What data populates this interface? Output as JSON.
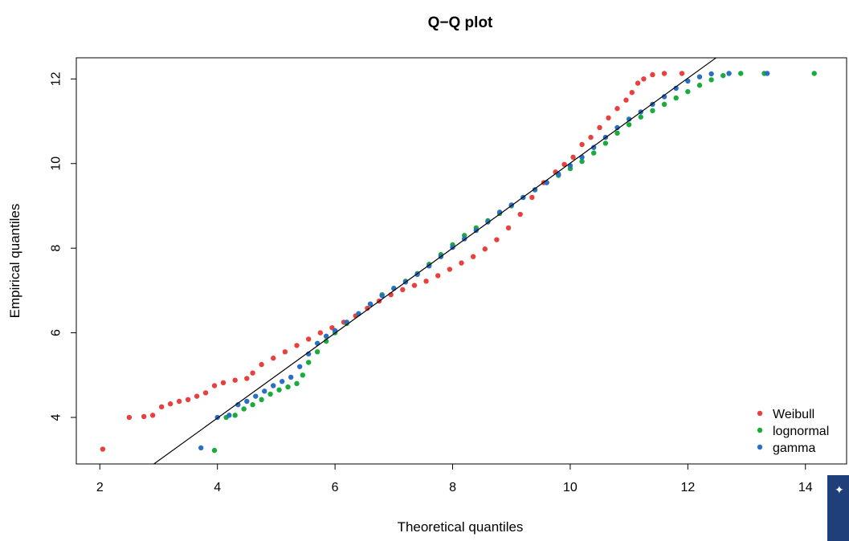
{
  "chart_data": {
    "type": "scatter",
    "title": "Q−Q plot",
    "xlabel": "Theoretical quantiles",
    "ylabel": "Empirical quantiles",
    "xlim": [
      1.6,
      14.7
    ],
    "ylim": [
      2.9,
      12.5
    ],
    "xticks": [
      2,
      4,
      6,
      8,
      10,
      12,
      14
    ],
    "yticks": [
      4,
      6,
      8,
      10,
      12
    ],
    "reference_line": {
      "x": [
        2.92,
        12.48
      ],
      "y": [
        2.9,
        12.5
      ]
    },
    "legend_position": "bottom-right",
    "series": [
      {
        "name": "Weibull",
        "color": "#e8403d",
        "points": [
          [
            2.05,
            3.25
          ],
          [
            2.5,
            4.0
          ],
          [
            2.75,
            4.02
          ],
          [
            2.9,
            4.05
          ],
          [
            3.05,
            4.25
          ],
          [
            3.2,
            4.32
          ],
          [
            3.35,
            4.38
          ],
          [
            3.5,
            4.42
          ],
          [
            3.65,
            4.5
          ],
          [
            3.8,
            4.58
          ],
          [
            3.95,
            4.75
          ],
          [
            4.1,
            4.82
          ],
          [
            4.3,
            4.88
          ],
          [
            4.5,
            4.92
          ],
          [
            4.6,
            5.05
          ],
          [
            4.75,
            5.25
          ],
          [
            4.95,
            5.4
          ],
          [
            5.15,
            5.55
          ],
          [
            5.35,
            5.7
          ],
          [
            5.55,
            5.85
          ],
          [
            5.75,
            6.0
          ],
          [
            5.95,
            6.12
          ],
          [
            6.15,
            6.25
          ],
          [
            6.35,
            6.4
          ],
          [
            6.55,
            6.58
          ],
          [
            6.75,
            6.75
          ],
          [
            6.95,
            6.9
          ],
          [
            7.15,
            7.02
          ],
          [
            7.35,
            7.12
          ],
          [
            7.55,
            7.22
          ],
          [
            7.75,
            7.35
          ],
          [
            7.95,
            7.5
          ],
          [
            8.15,
            7.65
          ],
          [
            8.35,
            7.8
          ],
          [
            8.55,
            7.98
          ],
          [
            8.75,
            8.2
          ],
          [
            8.95,
            8.48
          ],
          [
            9.15,
            8.8
          ],
          [
            9.35,
            9.2
          ],
          [
            9.55,
            9.55
          ],
          [
            9.75,
            9.8
          ],
          [
            9.9,
            9.98
          ],
          [
            10.05,
            10.15
          ],
          [
            10.2,
            10.45
          ],
          [
            10.35,
            10.62
          ],
          [
            10.5,
            10.85
          ],
          [
            10.65,
            11.08
          ],
          [
            10.8,
            11.3
          ],
          [
            10.95,
            11.5
          ],
          [
            11.05,
            11.68
          ],
          [
            11.15,
            11.9
          ],
          [
            11.25,
            12.0
          ],
          [
            11.4,
            12.1
          ],
          [
            11.6,
            12.13
          ],
          [
            11.9,
            12.13
          ]
        ]
      },
      {
        "name": "lognormal",
        "color": "#1aab3d",
        "points": [
          [
            3.95,
            3.22
          ],
          [
            4.15,
            4.0
          ],
          [
            4.3,
            4.05
          ],
          [
            4.45,
            4.2
          ],
          [
            4.6,
            4.3
          ],
          [
            4.75,
            4.42
          ],
          [
            4.9,
            4.55
          ],
          [
            5.05,
            4.65
          ],
          [
            5.2,
            4.72
          ],
          [
            5.35,
            4.8
          ],
          [
            5.45,
            5.0
          ],
          [
            5.55,
            5.3
          ],
          [
            5.7,
            5.55
          ],
          [
            5.85,
            5.8
          ],
          [
            6.0,
            6.0
          ],
          [
            6.2,
            6.22
          ],
          [
            6.4,
            6.45
          ],
          [
            6.6,
            6.68
          ],
          [
            6.8,
            6.9
          ],
          [
            7.0,
            7.05
          ],
          [
            7.2,
            7.22
          ],
          [
            7.4,
            7.4
          ],
          [
            7.6,
            7.62
          ],
          [
            7.8,
            7.85
          ],
          [
            8.0,
            8.08
          ],
          [
            8.2,
            8.3
          ],
          [
            8.4,
            8.48
          ],
          [
            8.6,
            8.65
          ],
          [
            8.8,
            8.82
          ],
          [
            9.0,
            9.0
          ],
          [
            9.2,
            9.2
          ],
          [
            9.4,
            9.38
          ],
          [
            9.6,
            9.55
          ],
          [
            9.8,
            9.72
          ],
          [
            10.0,
            9.88
          ],
          [
            10.2,
            10.05
          ],
          [
            10.4,
            10.25
          ],
          [
            10.6,
            10.48
          ],
          [
            10.8,
            10.72
          ],
          [
            11.0,
            10.92
          ],
          [
            11.2,
            11.1
          ],
          [
            11.4,
            11.25
          ],
          [
            11.6,
            11.4
          ],
          [
            11.8,
            11.55
          ],
          [
            12.0,
            11.7
          ],
          [
            12.2,
            11.85
          ],
          [
            12.4,
            11.98
          ],
          [
            12.6,
            12.08
          ],
          [
            12.9,
            12.13
          ],
          [
            13.3,
            12.13
          ],
          [
            14.15,
            12.13
          ]
        ]
      },
      {
        "name": "gamma",
        "color": "#2a6fc4",
        "points": [
          [
            3.72,
            3.28
          ],
          [
            4.0,
            4.0
          ],
          [
            4.2,
            4.05
          ],
          [
            4.35,
            4.3
          ],
          [
            4.5,
            4.38
          ],
          [
            4.65,
            4.5
          ],
          [
            4.8,
            4.62
          ],
          [
            4.95,
            4.75
          ],
          [
            5.1,
            4.85
          ],
          [
            5.25,
            4.95
          ],
          [
            5.4,
            5.2
          ],
          [
            5.55,
            5.5
          ],
          [
            5.7,
            5.75
          ],
          [
            5.85,
            5.92
          ],
          [
            6.0,
            6.05
          ],
          [
            6.2,
            6.25
          ],
          [
            6.4,
            6.45
          ],
          [
            6.6,
            6.68
          ],
          [
            6.8,
            6.88
          ],
          [
            7.0,
            7.05
          ],
          [
            7.2,
            7.2
          ],
          [
            7.4,
            7.38
          ],
          [
            7.6,
            7.58
          ],
          [
            7.8,
            7.8
          ],
          [
            8.0,
            8.02
          ],
          [
            8.2,
            8.22
          ],
          [
            8.4,
            8.42
          ],
          [
            8.6,
            8.62
          ],
          [
            8.8,
            8.85
          ],
          [
            9.0,
            9.02
          ],
          [
            9.2,
            9.2
          ],
          [
            9.4,
            9.38
          ],
          [
            9.6,
            9.55
          ],
          [
            9.8,
            9.75
          ],
          [
            10.0,
            9.95
          ],
          [
            10.2,
            10.15
          ],
          [
            10.4,
            10.38
          ],
          [
            10.6,
            10.62
          ],
          [
            10.8,
            10.85
          ],
          [
            11.0,
            11.05
          ],
          [
            11.2,
            11.22
          ],
          [
            11.4,
            11.4
          ],
          [
            11.6,
            11.58
          ],
          [
            11.8,
            11.78
          ],
          [
            12.0,
            11.95
          ],
          [
            12.2,
            12.05
          ],
          [
            12.4,
            12.12
          ],
          [
            12.7,
            12.13
          ],
          [
            13.35,
            12.13
          ]
        ]
      }
    ]
  }
}
